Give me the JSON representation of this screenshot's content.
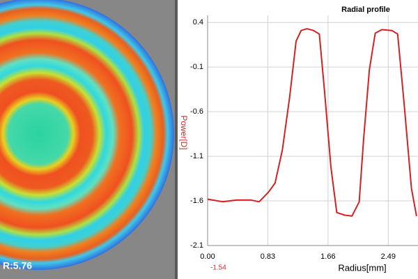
{
  "map": {
    "label": "R:5.76"
  },
  "chart_data": {
    "type": "line",
    "title": "Radial profile",
    "y_label": "Power[D]",
    "x_label": "Radius[mm]",
    "annotation": "-1.54",
    "x": [
      0,
      0.21,
      0.4,
      0.6,
      0.71,
      0.84,
      0.93,
      1.03,
      1.13,
      1.22,
      1.29,
      1.37,
      1.46,
      1.54,
      1.61,
      1.7,
      1.78,
      1.89,
      1.99,
      2.09,
      2.15,
      2.23,
      2.31,
      2.4,
      2.54,
      2.62,
      2.71,
      2.81,
      2.88
    ],
    "series": [
      {
        "color": "#d42020",
        "values": [
          -1.58,
          -1.61,
          -1.59,
          -1.59,
          -1.61,
          -1.5,
          -1.4,
          -1.03,
          -0.44,
          0.19,
          0.31,
          0.33,
          0.31,
          0.27,
          -0.36,
          -1.22,
          -1.73,
          -1.76,
          -1.77,
          -1.61,
          -0.91,
          -0.13,
          0.28,
          0.32,
          0.31,
          0.27,
          -0.52,
          -1.46,
          -1.77
        ]
      }
    ],
    "xlim": [
      0,
      2.9
    ],
    "ylim": [
      -2.1,
      0.48
    ],
    "xticks": [
      {
        "value": 0,
        "label": "0.00"
      },
      0.83,
      1.66,
      2.49
    ],
    "yticks": [
      0.4,
      -0.1,
      -0.6,
      -1.1,
      -1.6,
      -2.1
    ],
    "grid": true
  }
}
